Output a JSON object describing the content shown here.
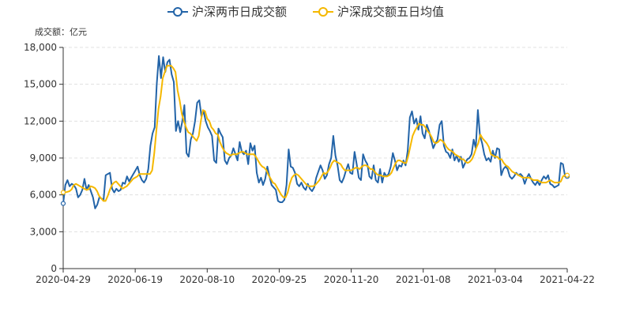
{
  "chart_data": {
    "type": "line",
    "unit_label": "成交额：亿元",
    "y_ticks": [
      "0",
      "3,000",
      "6,000",
      "9,000",
      "12,000",
      "15,000",
      "18,000"
    ],
    "x_tick_labels": [
      "2020-04-29",
      "2020-06-19",
      "2020-08-10",
      "2020-09-25",
      "2020-11-20",
      "2021-01-08",
      "2021-03-04",
      "2021-04-22"
    ],
    "ylim": [
      0,
      18000
    ],
    "grid": "horizontal-dashed",
    "legend_position": "top-center",
    "series": [
      {
        "name": "沪深两市日成交额",
        "color": "#2364a8",
        "values": [
          5300,
          6800,
          7200,
          6700,
          6900,
          6800,
          6500,
          5800,
          6000,
          6400,
          7300,
          6400,
          6800,
          6300,
          5800,
          4900,
          5200,
          5800,
          5700,
          5600,
          7600,
          7700,
          7800,
          6500,
          6200,
          6500,
          6300,
          6400,
          7000,
          6900,
          7500,
          7100,
          7400,
          7700,
          8000,
          8300,
          7600,
          7200,
          7000,
          7300,
          8100,
          10000,
          11000,
          11500,
          15000,
          17300,
          15500,
          17200,
          16000,
          16800,
          17000,
          15800,
          15200,
          11200,
          12000,
          11100,
          12000,
          13300,
          9400,
          9100,
          10500,
          11000,
          12000,
          13500,
          13700,
          12400,
          12800,
          12000,
          11500,
          11200,
          10800,
          8800,
          8600,
          11400,
          11000,
          10700,
          8800,
          8500,
          9000,
          9200,
          9800,
          9300,
          8800,
          10300,
          9500,
          9300,
          9600,
          8500,
          10200,
          9600,
          10000,
          7800,
          7000,
          7400,
          6800,
          7300,
          8300,
          7500,
          6800,
          6600,
          6400,
          5500,
          5400,
          5400,
          5600,
          6800,
          9700,
          8300,
          8200,
          7800,
          6900,
          6700,
          7000,
          6600,
          6400,
          6900,
          6500,
          6300,
          6600,
          7400,
          7900,
          8400,
          8000,
          7300,
          7600,
          8500,
          9000,
          10800,
          9200,
          8400,
          7200,
          7000,
          7400,
          8000,
          8500,
          7800,
          7700,
          9500,
          8500,
          7400,
          7200,
          9300,
          8800,
          8500,
          7500,
          7300,
          8400,
          7200,
          7000,
          8100,
          7000,
          7800,
          7500,
          7700,
          8300,
          9400,
          8800,
          8000,
          8400,
          8300,
          8800,
          8400,
          9600,
          12300,
          12800,
          11800,
          12200,
          11300,
          12400,
          11000,
          10600,
          11700,
          11200,
          10500,
          9800,
          10200,
          10500,
          11700,
          12000,
          10000,
          9500,
          9400,
          9000,
          9700,
          8800,
          9200,
          8700,
          9100,
          8200,
          8600,
          8900,
          9000,
          9300,
          10500,
          9800,
          12900,
          10800,
          10200,
          9300,
          8800,
          9000,
          8700,
          9600,
          9000,
          9800,
          9700,
          7600,
          8100,
          8300,
          8100,
          7500,
          7300,
          7500,
          7800,
          7600,
          7700,
          7500,
          6900,
          7400,
          7700,
          7300,
          7000,
          6800,
          7100,
          6800,
          7200,
          7500,
          7300,
          7600,
          6900,
          6800,
          6600,
          6700,
          6800,
          8600,
          8500,
          7500,
          7500
        ]
      },
      {
        "name": "沪深成交额五日均值",
        "color": "#f5b800",
        "values": [
          6200,
          6200,
          6250,
          6300,
          6450,
          6800,
          6900,
          6800,
          6700,
          6600,
          6500,
          6400,
          6450,
          6700,
          6650,
          6550,
          6300,
          5900,
          5700,
          5500,
          5500,
          5900,
          6400,
          6800,
          7000,
          7100,
          6900,
          6700,
          6500,
          6600,
          6700,
          6900,
          7100,
          7300,
          7400,
          7500,
          7700,
          7700,
          7700,
          7700,
          7700,
          7700,
          8000,
          9400,
          11200,
          13000,
          14000,
          15500,
          16000,
          16500,
          16500,
          16500,
          16300,
          16000,
          14500,
          13700,
          12600,
          12000,
          11500,
          11100,
          11000,
          10800,
          10600,
          10400,
          10800,
          12000,
          12900,
          12800,
          12200,
          12000,
          11500,
          11300,
          11000,
          10900,
          10300,
          9900,
          9600,
          9400,
          9300,
          9200,
          9300,
          9300,
          9300,
          9400,
          9500,
          9500,
          9400,
          9300,
          9300,
          9300,
          9300,
          9100,
          8800,
          8500,
          8300,
          8200,
          8000,
          7600,
          7300,
          7000,
          6900,
          6600,
          6300,
          6000,
          5800,
          5800,
          6200,
          6900,
          7400,
          7600,
          7700,
          7600,
          7400,
          7200,
          7000,
          6800,
          6700,
          6700,
          6700,
          6800,
          7000,
          7200,
          7500,
          7800,
          7700,
          7900,
          8200,
          8600,
          8800,
          8700,
          8600,
          8500,
          8200,
          8000,
          8000,
          8000,
          8000,
          8100,
          8200,
          8200,
          8100,
          8300,
          8400,
          8400,
          8300,
          8100,
          8100,
          7900,
          7700,
          7600,
          7600,
          7500,
          7500,
          7500,
          7600,
          7800,
          8200,
          8600,
          8800,
          8800,
          8700,
          8600,
          8600,
          9200,
          10000,
          10800,
          11200,
          11500,
          11800,
          11700,
          11700,
          11500,
          11200,
          11000,
          10700,
          10300,
          10200,
          10300,
          10500,
          10400,
          10200,
          9900,
          9700,
          9600,
          9500,
          9300,
          9200,
          9100,
          8900,
          8900,
          8700,
          8600,
          8700,
          8900,
          9300,
          9800,
          10200,
          10900,
          10600,
          10400,
          10200,
          9900,
          9300,
          9200,
          9100,
          9100,
          8900,
          8900,
          8600,
          8400,
          8300,
          8100,
          7900,
          7800,
          7700,
          7600,
          7500,
          7400,
          7400,
          7400,
          7400,
          7300,
          7200,
          7200,
          7200,
          7100,
          7000,
          7000,
          7000,
          7100,
          7200,
          7100,
          7000,
          7000,
          7000,
          7100,
          7500,
          7600,
          7600
        ]
      }
    ]
  }
}
